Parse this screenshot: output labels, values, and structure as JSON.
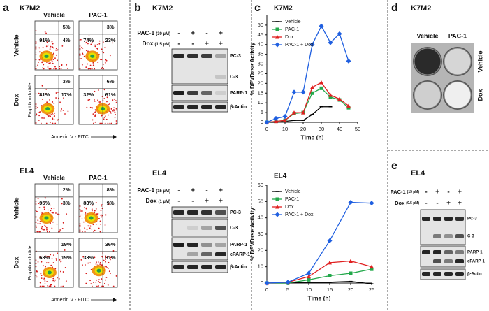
{
  "panel_a": {
    "letter": "a",
    "sections": [
      {
        "cell_line": "K7M2",
        "columns": [
          "Vehicle",
          "PAC-1"
        ],
        "rows": [
          "Vehicle",
          "Dox"
        ],
        "plots": [
          [
            "5%",
            "91%",
            "4%"
          ],
          [
            "3%",
            "74%",
            "23%"
          ],
          [
            "3%",
            "81%",
            "17%"
          ],
          [
            "6%",
            "32%",
            "61%"
          ]
        ],
        "y_label": "Propidium Iodide",
        "x_label": "Annexin V - FITC"
      },
      {
        "cell_line": "EL4",
        "columns": [
          "Vehicle",
          "PAC-1"
        ],
        "rows": [
          "Vehicle",
          "Dox"
        ],
        "plots": [
          [
            "2%",
            "95%",
            "3%"
          ],
          [
            "8%",
            "83%",
            "9%"
          ],
          [
            "19%",
            "63%",
            "19%"
          ],
          [
            "36%",
            "33%",
            "31%"
          ]
        ],
        "y_label": "Propidium Iodide",
        "x_label": "Annexin V - FITC"
      }
    ]
  },
  "panel_b": {
    "letter": "b",
    "blots": [
      {
        "cell_line": "K7M2",
        "treatments": [
          {
            "drug": "PAC-1",
            "dose": "(30 µM)",
            "signs": [
              "-",
              "+",
              "-",
              "+"
            ]
          },
          {
            "drug": "Dox",
            "dose": "(1.5 µM)",
            "signs": [
              "-",
              "-",
              "+",
              "+"
            ]
          }
        ],
        "bands": [
          "PC-3",
          "C-3",
          "PARP-1",
          "β-Actin"
        ]
      },
      {
        "cell_line": "EL4",
        "treatments": [
          {
            "drug": "PAC-1",
            "dose": "(15 µM)",
            "signs": [
              "-",
              "+",
              "-",
              "+"
            ]
          },
          {
            "drug": "Dox",
            "dose": "(1 µM)",
            "signs": [
              "-",
              "-",
              "+",
              "+"
            ]
          }
        ],
        "bands": [
          "PC-3",
          "C-3",
          "PARP-1",
          "cPARP-1",
          "β-Actin"
        ]
      }
    ]
  },
  "panel_c": {
    "letter": "c"
  },
  "chart_data": [
    {
      "type": "line",
      "title": "K7M2",
      "x_label": "Time (h)",
      "y_label": "% DEVDase Activity",
      "x": [
        0,
        5,
        10,
        15,
        20,
        25,
        30,
        35,
        40,
        45
      ],
      "xlim": [
        0,
        50
      ],
      "xticks": [
        0,
        10,
        20,
        30,
        40,
        50
      ],
      "ylim": [
        0,
        55
      ],
      "yticks": [
        0,
        5,
        10,
        15,
        20,
        25,
        30,
        35,
        40,
        45,
        50
      ],
      "series": [
        {
          "name": "Vehicle",
          "color": "#000000",
          "marker": "dash",
          "values": [
            0,
            0,
            0.5,
            1,
            1,
            4,
            8,
            8,
            null,
            null
          ]
        },
        {
          "name": "PAC-1",
          "color": "#22a84a",
          "marker": "square",
          "values": [
            0,
            0.5,
            1,
            4.5,
            5,
            15,
            17.5,
            13,
            11.5,
            7.5
          ]
        },
        {
          "name": "Dox",
          "color": "#e02020",
          "marker": "triangle",
          "values": [
            0,
            0.5,
            1,
            5,
            5,
            18,
            20.5,
            14,
            12,
            8.5
          ]
        },
        {
          "name": "PAC-1 + Dox",
          "color": "#1f5fe0",
          "marker": "diamond",
          "values": [
            0,
            2,
            3,
            15.5,
            15.5,
            40,
            49.5,
            41,
            45.5,
            31.5
          ]
        }
      ]
    },
    {
      "type": "line",
      "title": "EL4",
      "x_label": "Time (h)",
      "y_label": "% DEVDase Activity",
      "x": [
        0,
        5,
        10,
        15,
        20,
        25
      ],
      "xlim": [
        0,
        25
      ],
      "xticks": [
        0,
        5,
        10,
        15,
        20,
        25
      ],
      "ylim": [
        0,
        60
      ],
      "yticks": [
        0,
        10,
        20,
        30,
        40,
        50,
        60
      ],
      "series": [
        {
          "name": "Vehicle",
          "color": "#000000",
          "marker": "dash",
          "values": [
            0,
            0,
            0.5,
            0.5,
            1,
            -0.5
          ]
        },
        {
          "name": "PAC-1",
          "color": "#22a84a",
          "marker": "square",
          "values": [
            0,
            0,
            2,
            4.5,
            6,
            8.5
          ]
        },
        {
          "name": "Dox",
          "color": "#e02020",
          "marker": "triangle",
          "values": [
            0,
            0.5,
            4,
            12.5,
            13.5,
            10
          ]
        },
        {
          "name": "PAC-1 + Dox",
          "color": "#1f5fe0",
          "marker": "diamond",
          "values": [
            0,
            0.5,
            6,
            26,
            49.5,
            49
          ]
        }
      ]
    }
  ],
  "panel_d": {
    "letter": "d",
    "cell_line": "K7M2",
    "columns": [
      "Vehicle",
      "PAC-1"
    ],
    "rows": [
      "Vehicle",
      "Dox"
    ]
  },
  "panel_e": {
    "letter": "e",
    "blots": [
      {
        "cell_line": "EL4",
        "treatments": [
          {
            "drug": "PAC-1",
            "dose": "(15 µM)",
            "signs": [
              "-",
              "+",
              "-",
              "+"
            ]
          },
          {
            "drug": "Dox",
            "dose": "(0.5 µM)",
            "signs": [
              "-",
              "-",
              "+",
              "+"
            ]
          }
        ],
        "bands": [
          "PC-3",
          "C-3",
          "PARP-1",
          "cPARP-1",
          "β-Actin"
        ]
      }
    ]
  }
}
